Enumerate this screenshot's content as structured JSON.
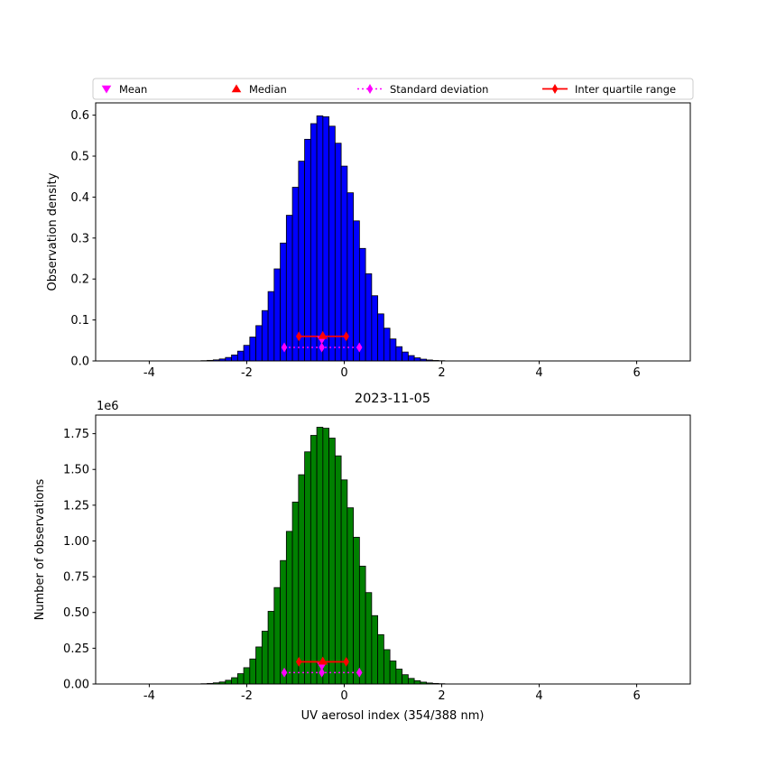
{
  "colors": {
    "magenta": "#ff00ff",
    "red": "#ff0000",
    "blue": "#0000ff",
    "green": "#008000",
    "black": "#000000"
  },
  "legend": {
    "items": [
      {
        "label": "Mean",
        "marker": "triangle-down",
        "color": "magenta",
        "line": "none"
      },
      {
        "label": "Median",
        "marker": "triangle-up",
        "color": "red",
        "line": "none"
      },
      {
        "label": "Standard deviation",
        "marker": "diamond",
        "color": "magenta",
        "line": "dotted"
      },
      {
        "label": "Inter quartile range",
        "marker": "diamond",
        "color": "red",
        "line": "solid"
      }
    ]
  },
  "chart_data": [
    {
      "type": "bar",
      "title": "",
      "ylabel": "Observation density",
      "xlabel": "",
      "xlim": [
        -5.1,
        7.1
      ],
      "ylim": [
        0,
        0.63
      ],
      "grid": false,
      "xtick_values": [
        -4,
        -2,
        0,
        2,
        4,
        6
      ],
      "xtick_labels": [
        "-4",
        "-2",
        "0",
        "2",
        "4",
        "6"
      ],
      "ytick_values": [
        0,
        0.1,
        0.2,
        0.3,
        0.4,
        0.5,
        0.6
      ],
      "ytick_labels": [
        "0.0",
        "0.1",
        "0.2",
        "0.3",
        "0.4",
        "0.5",
        "0.6"
      ],
      "bar_color": "#0000ff",
      "bar_edge_color": "#000000",
      "bin_width": 0.125,
      "bin_centers": [
        -3.0,
        -2.875,
        -2.75,
        -2.625,
        -2.5,
        -2.375,
        -2.25,
        -2.125,
        -2.0,
        -1.875,
        -1.75,
        -1.625,
        -1.5,
        -1.375,
        -1.25,
        -1.125,
        -1.0,
        -0.875,
        -0.75,
        -0.625,
        -0.5,
        -0.375,
        -0.25,
        -0.125,
        0.0,
        0.125,
        0.25,
        0.375,
        0.5,
        0.625,
        0.75,
        0.875,
        1.0,
        1.125,
        1.25,
        1.375,
        1.5,
        1.625,
        1.75,
        1.875,
        2.0,
        2.125,
        2.25,
        2.375
      ],
      "values": [
        0.0003,
        0.0007,
        0.0014,
        0.0026,
        0.0048,
        0.0085,
        0.0146,
        0.0239,
        0.0381,
        0.0583,
        0.0862,
        0.1229,
        0.1693,
        0.2247,
        0.2878,
        0.3556,
        0.424,
        0.4877,
        0.5411,
        0.5793,
        0.5983,
        0.5961,
        0.5731,
        0.5315,
        0.4756,
        0.4105,
        0.3419,
        0.2747,
        0.2129,
        0.1592,
        0.1149,
        0.08,
        0.0537,
        0.0348,
        0.0218,
        0.0131,
        0.0076,
        0.0043,
        0.0023,
        0.0012,
        0.0006,
        0.0003,
        0.0001,
        0.0001
      ],
      "stats": {
        "mean": -0.46,
        "median": -0.44,
        "std_lo": -1.23,
        "std_hi": 0.31,
        "iqr_lo": -0.93,
        "iqr_hi": 0.04,
        "mean_y": 0.052,
        "median_y": 0.062,
        "std_y": 0.033,
        "iqr_y": 0.06
      }
    },
    {
      "type": "bar",
      "title": "2023-11-05",
      "ylabel": "Number of observations",
      "xlabel": "UV aerosol index (354/388 nm)",
      "offset_text": "1e6",
      "xlim": [
        -5.1,
        7.1
      ],
      "ylim": [
        0,
        1.88
      ],
      "grid": false,
      "xtick_values": [
        -4,
        -2,
        0,
        2,
        4,
        6
      ],
      "xtick_labels": [
        "-4",
        "-2",
        "0",
        "2",
        "4",
        "6"
      ],
      "ytick_values": [
        0,
        0.25,
        0.5,
        0.75,
        1.0,
        1.25,
        1.5,
        1.75
      ],
      "ytick_labels": [
        "0.00",
        "0.25",
        "0.50",
        "0.75",
        "1.00",
        "1.25",
        "1.50",
        "1.75"
      ],
      "bar_color": "#008000",
      "bar_edge_color": "#000000",
      "bin_width": 0.125,
      "bin_centers": [
        -3.0,
        -2.875,
        -2.75,
        -2.625,
        -2.5,
        -2.375,
        -2.25,
        -2.125,
        -2.0,
        -1.875,
        -1.75,
        -1.625,
        -1.5,
        -1.375,
        -1.25,
        -1.125,
        -1.0,
        -0.875,
        -0.75,
        -0.625,
        -0.5,
        -0.375,
        -0.25,
        -0.125,
        0.0,
        0.125,
        0.25,
        0.375,
        0.5,
        0.625,
        0.75,
        0.875,
        1.0,
        1.125,
        1.25,
        1.375,
        1.5,
        1.625,
        1.75,
        1.875,
        2.0,
        2.125,
        2.25,
        2.375
      ],
      "values": [
        0.001,
        0.002,
        0.004,
        0.008,
        0.014,
        0.026,
        0.044,
        0.072,
        0.114,
        0.175,
        0.259,
        0.369,
        0.508,
        0.674,
        0.863,
        1.067,
        1.272,
        1.463,
        1.623,
        1.738,
        1.795,
        1.788,
        1.719,
        1.595,
        1.427,
        1.232,
        1.026,
        0.824,
        0.639,
        0.478,
        0.345,
        0.24,
        0.161,
        0.104,
        0.065,
        0.039,
        0.023,
        0.013,
        0.007,
        0.004,
        0.002,
        0.001,
        0.0005,
        0.0002
      ],
      "stats": {
        "mean": -0.46,
        "median": -0.44,
        "std_lo": -1.23,
        "std_hi": 0.31,
        "iqr_lo": -0.93,
        "iqr_hi": 0.04,
        "mean_y": 0.125,
        "median_y": 0.16,
        "std_y": 0.08,
        "iqr_y": 0.155
      }
    }
  ]
}
